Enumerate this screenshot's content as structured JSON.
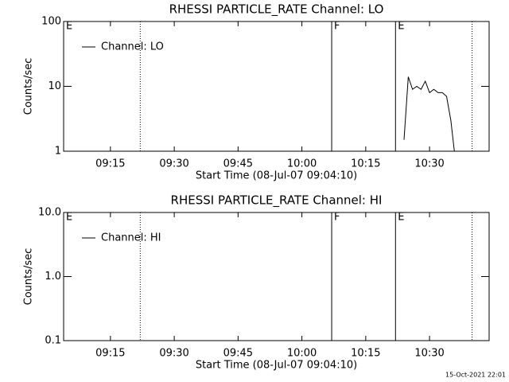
{
  "chart_data": [
    {
      "type": "line",
      "title": "RHESSI PARTICLE_RATE Channel: LO",
      "xlabel": "Start Time (08-Jul-07 09:04:10)",
      "ylabel": "Counts/sec",
      "xlim": [
        "09:04",
        "10:44"
      ],
      "xticks": [
        "09:15",
        "09:30",
        "09:45",
        "10:00",
        "10:15",
        "10:30"
      ],
      "ylim": [
        1,
        100
      ],
      "yticks": [
        1,
        10,
        100
      ],
      "ylog": true,
      "legend": "upper left",
      "markers": [
        {
          "x": "09:04",
          "label": "E"
        },
        {
          "x": "09:22",
          "style": "dotted"
        },
        {
          "x": "10:07",
          "label": "F",
          "style": "solid"
        },
        {
          "x": "10:22",
          "label": "E",
          "style": "solid"
        },
        {
          "x": "10:40",
          "style": "dotted"
        }
      ],
      "series": [
        {
          "name": "Channel: LO",
          "color": "#000000",
          "x": [
            "10:24",
            "10:25",
            "10:26",
            "10:27",
            "10:28",
            "10:29",
            "10:30",
            "10:31",
            "10:32",
            "10:33",
            "10:34",
            "10:35",
            "10:36"
          ],
          "values": [
            1.5,
            14,
            9,
            10,
            9,
            12,
            8,
            9,
            8,
            8,
            7,
            3,
            0.8
          ]
        }
      ]
    },
    {
      "type": "line",
      "title": "RHESSI PARTICLE_RATE Channel: HI",
      "xlabel": "Start Time (08-Jul-07 09:04:10)",
      "ylabel": "Counts/sec",
      "xlim": [
        "09:04",
        "10:44"
      ],
      "xticks": [
        "09:15",
        "09:30",
        "09:45",
        "10:00",
        "10:15",
        "10:30"
      ],
      "ylim": [
        0.1,
        10
      ],
      "yticks": [
        0.1,
        {
          "value": 1,
          "label": "1.0"
        },
        {
          "value": 10,
          "label": "10.0"
        }
      ],
      "ylog": true,
      "legend": "upper left",
      "markers": [
        {
          "x": "09:04",
          "label": "E"
        },
        {
          "x": "09:22",
          "style": "dotted"
        },
        {
          "x": "10:07",
          "label": "F",
          "style": "solid"
        },
        {
          "x": "10:22",
          "label": "E",
          "style": "solid"
        },
        {
          "x": "10:40",
          "style": "dotted"
        }
      ],
      "series": [
        {
          "name": "Channel: HI",
          "color": "#000000",
          "x": [],
          "values": []
        }
      ]
    }
  ],
  "timestamp": "15-Oct-2021 22:01"
}
